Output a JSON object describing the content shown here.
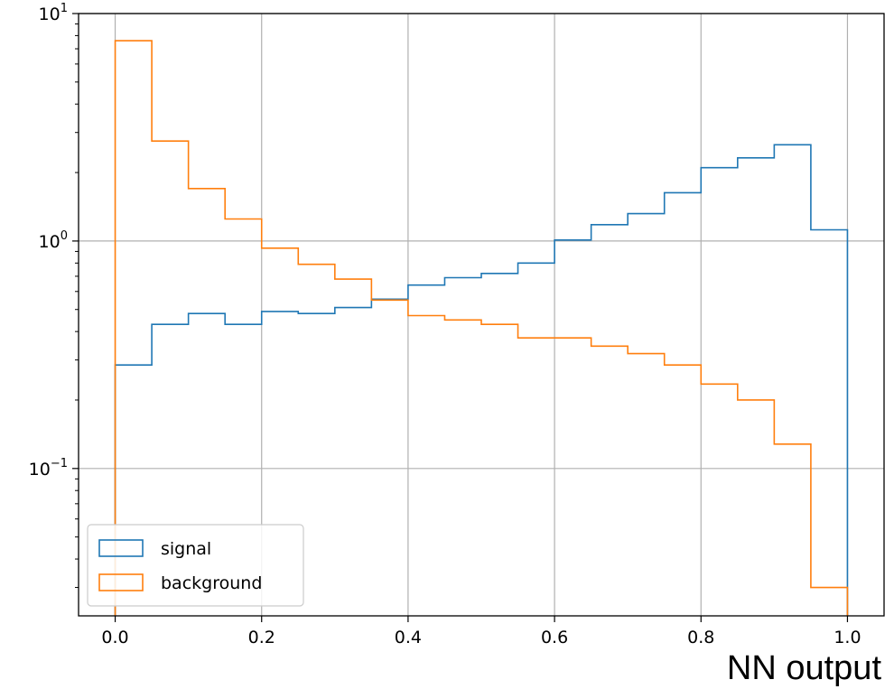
{
  "chart_data": {
    "type": "histogram",
    "xlabel": "NN output",
    "ylabel": "",
    "title": "",
    "yscale": "log",
    "xlim": [
      -0.05,
      1.05
    ],
    "ylim": [
      0.0225,
      10
    ],
    "grid": true,
    "legend_placement": "lower-left",
    "bin_edges": [
      0.0,
      0.05,
      0.1,
      0.15,
      0.2,
      0.25,
      0.3,
      0.35,
      0.4,
      0.45,
      0.5,
      0.55,
      0.6,
      0.65,
      0.7,
      0.75,
      0.8,
      0.85,
      0.9,
      0.95,
      1.0
    ],
    "x_ticks": [
      0.0,
      0.2,
      0.4,
      0.6,
      0.8,
      1.0
    ],
    "x_tick_labels": [
      "0.0",
      "0.2",
      "0.4",
      "0.6",
      "0.8",
      "1.0"
    ],
    "y_ticks": [
      0.1,
      1,
      10
    ],
    "y_tick_labels": [
      {
        "base": "10",
        "exp": "−1"
      },
      {
        "base": "10",
        "exp": "0"
      },
      {
        "base": "10",
        "exp": "1"
      }
    ],
    "series": [
      {
        "name": "signal",
        "color": "#1f77b4",
        "values": [
          0.285,
          0.43,
          0.48,
          0.43,
          0.49,
          0.48,
          0.51,
          0.555,
          0.64,
          0.69,
          0.72,
          0.8,
          1.01,
          1.18,
          1.32,
          1.63,
          2.1,
          2.32,
          2.65,
          1.12
        ]
      },
      {
        "name": "background",
        "color": "#ff7f0e",
        "values": [
          7.6,
          2.75,
          1.7,
          1.25,
          0.93,
          0.79,
          0.68,
          0.55,
          0.47,
          0.45,
          0.43,
          0.375,
          0.375,
          0.345,
          0.32,
          0.285,
          0.235,
          0.2,
          0.128,
          0.03
        ]
      }
    ]
  }
}
